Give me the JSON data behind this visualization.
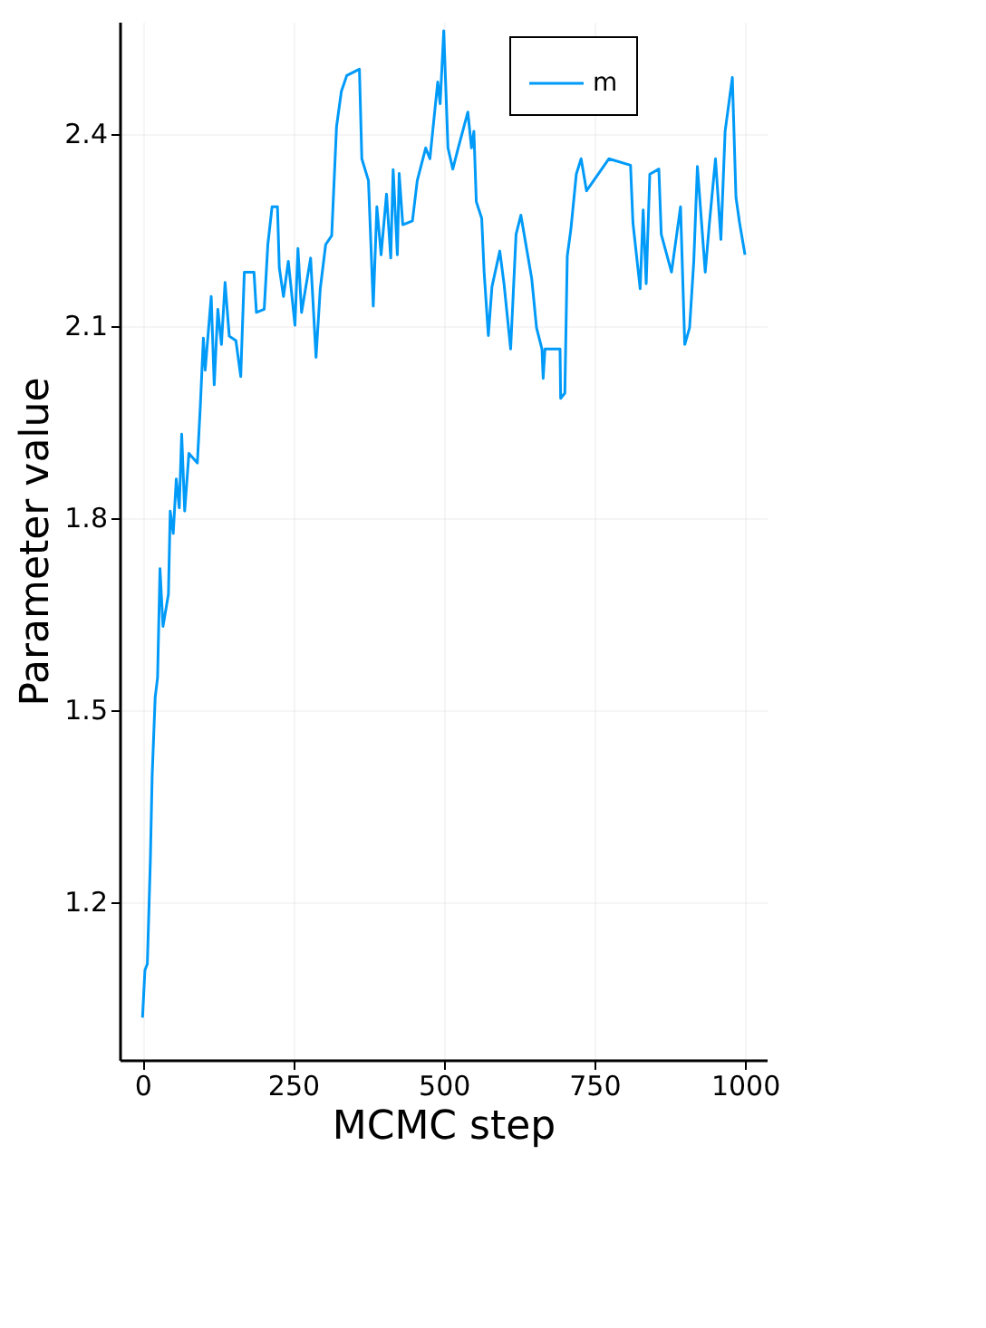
{
  "chart_data": {
    "type": "line",
    "xlabel": "MCMC step",
    "ylabel": "Parameter value",
    "xlim": [
      -38,
      1036
    ],
    "ylim": [
      0.953,
      2.574
    ],
    "xticks": [
      0,
      250,
      500,
      750,
      1000
    ],
    "yticks": [
      1.2,
      1.5,
      1.8,
      2.1,
      2.4
    ],
    "grid": true,
    "legend": "top right",
    "marker": "none",
    "line_style": "solid",
    "series": [
      {
        "name": "m",
        "color": "#009af9",
        "x": [
          0,
          4,
          8,
          13,
          16,
          21,
          25,
          29,
          34,
          43,
          46,
          51,
          56,
          61,
          65,
          70,
          77,
          91,
          96,
          101,
          104,
          114,
          119,
          125,
          131,
          137,
          144,
          155,
          163,
          169,
          185,
          189,
          202,
          208,
          215,
          224,
          227,
          234,
          242,
          253,
          258,
          264,
          279,
          288,
          295,
          304,
          314,
          322,
          330,
          339,
          360,
          364,
          375,
          383,
          389,
          396,
          405,
          412,
          416,
          423,
          426,
          432,
          448,
          456,
          470,
          477,
          490,
          494,
          500,
          507,
          515,
          524,
          540,
          546,
          550,
          554,
          563,
          567,
          574,
          580,
          593,
          600,
          611,
          620,
          628,
          646,
          654,
          663,
          665,
          668,
          693,
          694,
          701,
          705,
          711,
          720,
          728,
          737,
          774,
          810,
          814,
          826,
          831,
          836,
          842,
          857,
          861,
          878,
          893,
          900,
          908,
          915,
          921,
          934,
          941,
          951,
          960,
          967,
          979,
          985,
          991,
          1000
        ],
        "values": [
          1.019,
          1.093,
          1.103,
          1.264,
          1.397,
          1.519,
          1.55,
          1.72,
          1.63,
          1.68,
          1.81,
          1.775,
          1.86,
          1.815,
          1.93,
          1.81,
          1.9,
          1.885,
          1.975,
          2.08,
          2.03,
          2.145,
          2.007,
          2.125,
          2.07,
          2.167,
          2.083,
          2.076,
          2.02,
          2.183,
          2.183,
          2.12,
          2.125,
          2.226,
          2.285,
          2.285,
          2.19,
          2.145,
          2.2,
          2.1,
          2.22,
          2.12,
          2.205,
          2.05,
          2.157,
          2.226,
          2.24,
          2.41,
          2.465,
          2.49,
          2.5,
          2.36,
          2.326,
          2.13,
          2.285,
          2.21,
          2.305,
          2.205,
          2.343,
          2.21,
          2.337,
          2.257,
          2.263,
          2.326,
          2.377,
          2.36,
          2.48,
          2.446,
          2.56,
          2.377,
          2.344,
          2.377,
          2.433,
          2.377,
          2.403,
          2.293,
          2.267,
          2.183,
          2.084,
          2.16,
          2.216,
          2.165,
          2.063,
          2.242,
          2.272,
          2.173,
          2.096,
          2.063,
          2.017,
          2.063,
          2.063,
          1.986,
          1.994,
          2.208,
          2.25,
          2.336,
          2.36,
          2.31,
          2.36,
          2.35,
          2.26,
          2.157,
          2.28,
          2.165,
          2.336,
          2.344,
          2.242,
          2.183,
          2.285,
          2.07,
          2.096,
          2.2,
          2.348,
          2.183,
          2.26,
          2.36,
          2.234,
          2.403,
          2.487,
          2.3,
          2.26,
          2.21
        ]
      }
    ]
  }
}
